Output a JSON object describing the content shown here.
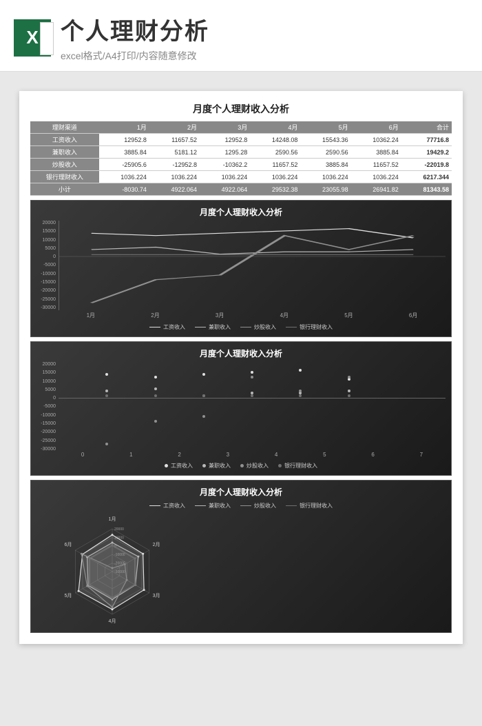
{
  "header": {
    "icon_letter": "X",
    "title": "个人理财分析",
    "subtitle": "excel格式/A4打印/内容随意修改"
  },
  "doc": {
    "title": "月度个人理财收入分析",
    "table": {
      "col_header": "理财渠道",
      "months": [
        "1月",
        "2月",
        "3月",
        "4月",
        "5月",
        "6月"
      ],
      "total_header": "合计",
      "rows": [
        {
          "label": "工资收入",
          "vals": [
            "12952.8",
            "11657.52",
            "12952.8",
            "14248.08",
            "15543.36",
            "10362.24"
          ],
          "total": "77716.8"
        },
        {
          "label": "兼职收入",
          "vals": [
            "3885.84",
            "5181.12",
            "1295.28",
            "2590.56",
            "2590.56",
            "3885.84"
          ],
          "total": "19429.2"
        },
        {
          "label": "炒股收入",
          "vals": [
            "-25905.6",
            "-12952.8",
            "-10362.2",
            "11657.52",
            "3885.84",
            "11657.52"
          ],
          "total": "-22019.8"
        },
        {
          "label": "银行理财收入",
          "vals": [
            "1036.224",
            "1036.224",
            "1036.224",
            "1036.224",
            "1036.224",
            "1036.224"
          ],
          "total": "6217.344"
        }
      ],
      "subtotal": {
        "label": "小计",
        "vals": [
          "-8030.74",
          "4922.064",
          "4922.064",
          "29532.38",
          "23055.98",
          "26941.82"
        ],
        "total": "81343.58"
      }
    },
    "chart_title": "月度个人理财收入分析",
    "series_names": [
      "工资收入",
      "兼职收入",
      "炒股收入",
      "银行理财收入"
    ],
    "series_colors": [
      "#e0e0e0",
      "#b8b8b8",
      "#909090",
      "#707070"
    ],
    "line_chart": {
      "type": "line",
      "ymin": -30000,
      "ymax": 20000,
      "ystep": 5000,
      "data": [
        [
          12952.8,
          11657.52,
          12952.8,
          14248.08,
          15543.36,
          10362.24
        ],
        [
          3885.84,
          5181.12,
          1295.28,
          2590.56,
          2590.56,
          3885.84
        ],
        [
          -25905.6,
          -12952.8,
          -10362.2,
          11657.52,
          3885.84,
          11657.52
        ],
        [
          1036.224,
          1036.224,
          1036.224,
          1036.224,
          1036.224,
          1036.224
        ]
      ]
    },
    "scatter_chart": {
      "type": "scatter",
      "ymin": -30000,
      "ymax": 20000,
      "ystep": 5000,
      "xmin": 0,
      "xmax": 7
    },
    "radar_chart": {
      "type": "radar",
      "rings": [
        "20000",
        "10000",
        "0",
        "-10000",
        "-20000",
        "-30000"
      ],
      "rmin": -30000,
      "rmax": 20000
    }
  },
  "colors": {
    "page_bg": "#e8e8e8",
    "excel_green": "#1d7044",
    "chart_bg": "#2a2a2a",
    "table_header": "#888888",
    "grid": "#555555"
  }
}
